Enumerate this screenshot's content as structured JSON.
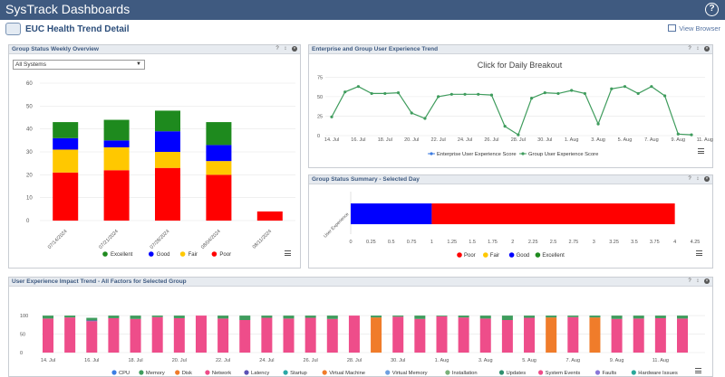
{
  "app": {
    "title": "SysTrack Dashboards",
    "help": "?"
  },
  "page": {
    "title": "EUC Health Trend Detail",
    "view_browser": "View Browser"
  },
  "panels": {
    "weekly": {
      "title": "Group Status Weekly Overview",
      "controls": "? ↕"
    },
    "trend": {
      "title": "Enterprise and Group User Experience Trend",
      "controls": "? ↕"
    },
    "summary": {
      "title": "Group Status Summary - Selected Day",
      "controls": "? ↕"
    },
    "impact": {
      "title": "User Experience Impact Trend - All Factors for Selected Group",
      "controls": "? ↕"
    }
  },
  "filter": {
    "selected": "All Systems"
  },
  "colors": {
    "excellent": "#1e8a1e",
    "good": "#0000ff",
    "fair": "#ffc800",
    "poor": "#ff0000",
    "enterprise": "#3b7be0",
    "group": "#3f9c5d"
  },
  "chart_data": [
    {
      "type": "bar",
      "stacked": true,
      "categories": [
        "07/14/2024",
        "07/21/2024",
        "07/28/2024",
        "08/04/2024",
        "08/11/2024"
      ],
      "series": [
        {
          "name": "Poor",
          "values": [
            21,
            22,
            23,
            20,
            4
          ]
        },
        {
          "name": "Fair",
          "values": [
            10,
            10,
            7,
            6,
            0
          ]
        },
        {
          "name": "Good",
          "values": [
            5,
            3,
            9,
            7,
            0
          ]
        },
        {
          "name": "Excellent",
          "values": [
            7,
            9,
            9,
            10,
            0
          ]
        }
      ],
      "yticks": [
        0,
        10,
        20,
        30,
        40,
        50,
        60
      ],
      "ylim": [
        0,
        60
      ],
      "legend": "bottom"
    },
    {
      "type": "line",
      "title": "Click for Daily Breakout",
      "x_labels": [
        "14. Jul",
        "16. Jul",
        "18. Jul",
        "20. Jul",
        "22. Jul",
        "24. Jul",
        "26. Jul",
        "28. Jul",
        "30. Jul",
        "1. Aug",
        "3. Aug",
        "5. Aug",
        "7. Aug",
        "9. Aug",
        "11. Aug"
      ],
      "yticks": [
        0,
        25,
        50,
        75
      ],
      "ylim": [
        0,
        80
      ],
      "series": [
        {
          "name": "Enterprise User Experience Score",
          "values": []
        },
        {
          "name": "Group User Experience Score",
          "values": [
            24,
            56,
            63,
            54,
            54,
            55,
            29,
            22,
            50,
            53,
            53,
            53,
            52,
            12,
            1,
            48,
            55,
            54,
            58,
            54,
            15,
            60,
            63,
            54,
            63,
            51,
            2,
            1
          ]
        }
      ],
      "legend": "bottom"
    },
    {
      "type": "bar",
      "orientation": "horizontal",
      "stacked": true,
      "categories": [
        "User Experience"
      ],
      "series": [
        {
          "name": "Poor",
          "values": [
            3
          ]
        },
        {
          "name": "Fair",
          "values": [
            0
          ]
        },
        {
          "name": "Good",
          "values": [
            1
          ]
        },
        {
          "name": "Excellent",
          "values": [
            0
          ]
        }
      ],
      "xticks": [
        "0",
        "0.25",
        "0.5",
        "0.75",
        "1",
        "1.25",
        "1.5",
        "1.75",
        "2",
        "2.25",
        "2.5",
        "2.75",
        "3",
        "3.25",
        "3.5",
        "3.75",
        "4",
        "4.25"
      ],
      "xlim": [
        0,
        4.25
      ],
      "legend": "bottom"
    },
    {
      "type": "bar",
      "stacked": true,
      "x_labels": [
        "14. Jul",
        "16. Jul",
        "18. Jul",
        "20. Jul",
        "22. Jul",
        "24. Jul",
        "26. Jul",
        "28. Jul",
        "30. Jul",
        "1. Aug",
        "3. Aug",
        "5. Aug",
        "7. Aug",
        "9. Aug",
        "11. Aug"
      ],
      "yticks": [
        0,
        50,
        100
      ],
      "ylim": [
        0,
        110
      ],
      "series_names": [
        "CPU",
        "Memory",
        "Disk",
        "Network",
        "Latency",
        "Startup",
        "Virtual Machine",
        "Virtual Memory",
        "Installation",
        "Updates",
        "System Events",
        "Faults",
        "Hardware Issues"
      ],
      "bars": [
        {
          "kind": "network",
          "network": 92,
          "memory": 8
        },
        {
          "kind": "network",
          "network": 95,
          "memory": 5
        },
        {
          "kind": "network",
          "network": 85,
          "memory": 7,
          "latency": 2
        },
        {
          "kind": "network",
          "network": 93,
          "memory": 7
        },
        {
          "kind": "network",
          "network": 91,
          "memory": 9
        },
        {
          "kind": "network",
          "network": 96,
          "memory": 4
        },
        {
          "kind": "network",
          "network": 93,
          "memory": 7
        },
        {
          "kind": "network",
          "network": 100
        },
        {
          "kind": "network",
          "network": 92,
          "memory": 8
        },
        {
          "kind": "network",
          "network": 88,
          "memory": 12
        },
        {
          "kind": "network",
          "network": 94,
          "memory": 6
        },
        {
          "kind": "network",
          "network": 92,
          "memory": 8
        },
        {
          "kind": "network",
          "network": 94,
          "memory": 6
        },
        {
          "kind": "network",
          "network": 91,
          "memory": 9
        },
        {
          "kind": "network",
          "network": 100
        },
        {
          "kind": "disk",
          "disk": 95,
          "memory": 5
        },
        {
          "kind": "network",
          "network": 97,
          "memory": 3
        },
        {
          "kind": "network",
          "network": 91,
          "memory": 9
        },
        {
          "kind": "network",
          "network": 98,
          "memory": 2
        },
        {
          "kind": "network",
          "network": 95,
          "memory": 5
        },
        {
          "kind": "network",
          "network": 92,
          "memory": 8
        },
        {
          "kind": "network",
          "network": 88,
          "memory": 12
        },
        {
          "kind": "network",
          "network": 94,
          "memory": 6
        },
        {
          "kind": "disk",
          "disk": 95,
          "memory": 5
        },
        {
          "kind": "network",
          "network": 96,
          "memory": 4
        },
        {
          "kind": "disk",
          "disk": 95,
          "memory": 5
        },
        {
          "kind": "network",
          "network": 91,
          "memory": 9
        },
        {
          "kind": "network",
          "network": 92,
          "memory": 8
        },
        {
          "kind": "network",
          "network": 93,
          "memory": 7
        },
        {
          "kind": "network",
          "network": 92,
          "memory": 8
        }
      ],
      "legend": "bottom"
    }
  ],
  "impact_colors": {
    "CPU": "#3a7ee3",
    "Memory": "#3f9c5d",
    "Disk": "#f07c2a",
    "Network": "#ee4d8a",
    "Latency": "#5a52b5",
    "Startup": "#2aa8a6",
    "Virtual Machine": "#f07c2a",
    "Virtual Memory": "#6ea0e0",
    "Installation": "#7ab07a",
    "Updates": "#2f8f6f",
    "System Events": "#ee4d8a",
    "Faults": "#8a78d8",
    "Hardware Issues": "#2aa89a"
  }
}
